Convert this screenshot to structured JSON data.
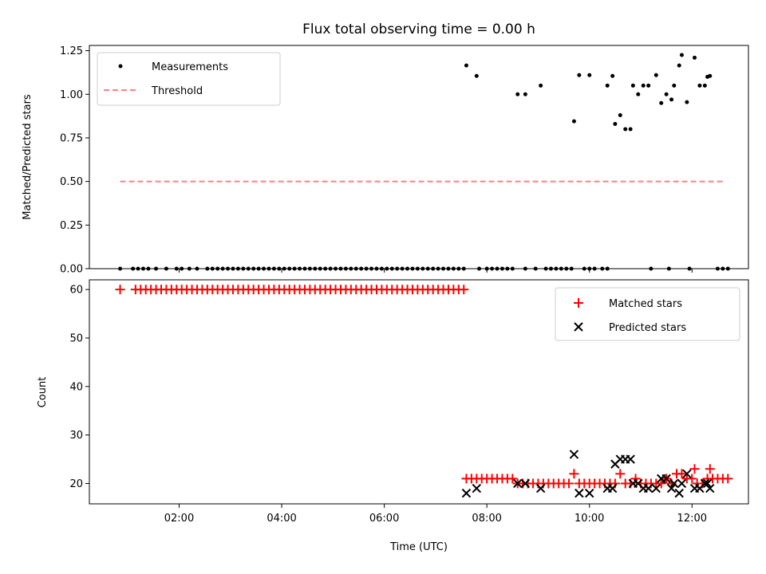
{
  "chart_data": [
    {
      "type": "scatter",
      "title": "Flux total observing time = 0.00 h",
      "xlabel": "",
      "ylabel": "Matched/Predicted stars",
      "xlim": [
        0.25,
        13.1
      ],
      "ylim": [
        0.0,
        1.28
      ],
      "yticks": [
        0.0,
        0.25,
        0.5,
        0.75,
        1.0,
        1.25
      ],
      "ytick_labels": [
        "0.00",
        "0.25",
        "0.50",
        "0.75",
        "1.00",
        "1.25"
      ],
      "threshold": {
        "name": "Threshold",
        "value": 0.5,
        "x_range": [
          0.85,
          12.65
        ],
        "color": "#ff8080"
      },
      "series": [
        {
          "name": "Measurements",
          "color": "#000000",
          "points": [
            [
              0.85,
              0
            ],
            [
              1.1,
              0
            ],
            [
              1.2,
              0
            ],
            [
              1.3,
              0
            ],
            [
              1.4,
              0
            ],
            [
              1.55,
              0
            ],
            [
              1.75,
              0
            ],
            [
              1.95,
              0
            ],
            [
              2.05,
              0
            ],
            [
              2.2,
              0
            ],
            [
              2.35,
              0
            ],
            [
              2.55,
              0
            ],
            [
              2.65,
              0
            ],
            [
              2.75,
              0
            ],
            [
              2.85,
              0
            ],
            [
              2.95,
              0
            ],
            [
              3.05,
              0
            ],
            [
              3.15,
              0
            ],
            [
              3.25,
              0
            ],
            [
              3.35,
              0
            ],
            [
              3.45,
              0
            ],
            [
              3.55,
              0
            ],
            [
              3.65,
              0
            ],
            [
              3.75,
              0
            ],
            [
              3.85,
              0
            ],
            [
              3.95,
              0
            ],
            [
              4.05,
              0
            ],
            [
              4.15,
              0
            ],
            [
              4.25,
              0
            ],
            [
              4.35,
              0
            ],
            [
              4.45,
              0
            ],
            [
              4.55,
              0
            ],
            [
              4.65,
              0
            ],
            [
              4.75,
              0
            ],
            [
              4.85,
              0
            ],
            [
              4.95,
              0
            ],
            [
              5.05,
              0
            ],
            [
              5.15,
              0
            ],
            [
              5.25,
              0
            ],
            [
              5.35,
              0
            ],
            [
              5.45,
              0
            ],
            [
              5.55,
              0
            ],
            [
              5.65,
              0
            ],
            [
              5.75,
              0
            ],
            [
              5.85,
              0
            ],
            [
              5.95,
              0
            ],
            [
              6.05,
              0
            ],
            [
              6.15,
              0
            ],
            [
              6.25,
              0
            ],
            [
              6.35,
              0
            ],
            [
              6.45,
              0
            ],
            [
              6.55,
              0
            ],
            [
              6.65,
              0
            ],
            [
              6.75,
              0
            ],
            [
              6.85,
              0
            ],
            [
              6.95,
              0
            ],
            [
              7.05,
              0
            ],
            [
              7.15,
              0
            ],
            [
              7.25,
              0
            ],
            [
              7.35,
              0
            ],
            [
              7.45,
              0
            ],
            [
              7.55,
              0
            ],
            [
              7.85,
              0
            ],
            [
              8.0,
              0
            ],
            [
              8.1,
              0
            ],
            [
              8.2,
              0
            ],
            [
              8.3,
              0
            ],
            [
              8.4,
              0
            ],
            [
              8.5,
              0
            ],
            [
              8.75,
              0
            ],
            [
              8.95,
              0
            ],
            [
              9.15,
              0
            ],
            [
              9.25,
              0
            ],
            [
              9.35,
              0
            ],
            [
              9.45,
              0
            ],
            [
              9.55,
              0
            ],
            [
              9.65,
              0
            ],
            [
              9.9,
              0
            ],
            [
              10.0,
              0
            ],
            [
              10.1,
              0
            ],
            [
              10.25,
              0
            ],
            [
              10.35,
              0
            ],
            [
              11.2,
              0
            ],
            [
              11.55,
              0
            ],
            [
              11.95,
              0
            ],
            [
              12.5,
              0
            ],
            [
              12.6,
              0
            ],
            [
              12.7,
              0
            ],
            [
              7.6,
              1.165
            ],
            [
              7.8,
              1.105
            ],
            [
              8.6,
              1.0
            ],
            [
              8.75,
              1.0
            ],
            [
              9.05,
              1.05
            ],
            [
              9.7,
              0.845
            ],
            [
              9.8,
              1.11
            ],
            [
              10.0,
              1.11
            ],
            [
              10.35,
              1.05
            ],
            [
              10.45,
              1.105
            ],
            [
              10.5,
              0.83
            ],
            [
              10.6,
              0.88
            ],
            [
              10.7,
              0.8
            ],
            [
              10.8,
              0.8
            ],
            [
              10.85,
              1.05
            ],
            [
              10.95,
              1.0
            ],
            [
              11.05,
              1.05
            ],
            [
              11.15,
              1.05
            ],
            [
              11.3,
              1.11
            ],
            [
              11.4,
              0.95
            ],
            [
              11.5,
              1.0
            ],
            [
              11.6,
              0.97
            ],
            [
              11.65,
              1.05
            ],
            [
              11.75,
              1.165
            ],
            [
              11.8,
              1.225
            ],
            [
              11.9,
              0.955
            ],
            [
              12.05,
              1.21
            ],
            [
              12.15,
              1.05
            ],
            [
              12.25,
              1.05
            ],
            [
              12.3,
              1.1
            ],
            [
              12.35,
              1.105
            ]
          ]
        }
      ],
      "legend": {
        "location": "upper left",
        "entries": [
          "Measurements",
          "Threshold"
        ]
      },
      "grid": false
    },
    {
      "type": "scatter",
      "title": "",
      "xlabel": "Time (UTC)",
      "ylabel": "Count",
      "xlim": [
        0.25,
        13.1
      ],
      "ylim": [
        15.8,
        62.0
      ],
      "yticks": [
        20,
        30,
        40,
        50,
        60
      ],
      "ytick_labels": [
        "20",
        "30",
        "40",
        "50",
        "60"
      ],
      "xticks": [
        2,
        4,
        6,
        8,
        10,
        12
      ],
      "xtick_labels": [
        "02:00",
        "04:00",
        "06:00",
        "08:00",
        "10:00",
        "12:00"
      ],
      "series": [
        {
          "name": "Matched stars",
          "marker": "+",
          "color": "#ff0000",
          "points": [
            [
              0.85,
              60
            ],
            [
              1.15,
              60
            ],
            [
              1.25,
              60
            ],
            [
              1.35,
              60
            ],
            [
              1.45,
              60
            ],
            [
              1.55,
              60
            ],
            [
              1.65,
              60
            ],
            [
              1.75,
              60
            ],
            [
              1.85,
              60
            ],
            [
              1.95,
              60
            ],
            [
              2.05,
              60
            ],
            [
              2.15,
              60
            ],
            [
              2.25,
              60
            ],
            [
              2.35,
              60
            ],
            [
              2.45,
              60
            ],
            [
              2.55,
              60
            ],
            [
              2.65,
              60
            ],
            [
              2.75,
              60
            ],
            [
              2.85,
              60
            ],
            [
              2.95,
              60
            ],
            [
              3.05,
              60
            ],
            [
              3.15,
              60
            ],
            [
              3.25,
              60
            ],
            [
              3.35,
              60
            ],
            [
              3.45,
              60
            ],
            [
              3.55,
              60
            ],
            [
              3.65,
              60
            ],
            [
              3.75,
              60
            ],
            [
              3.85,
              60
            ],
            [
              3.95,
              60
            ],
            [
              4.05,
              60
            ],
            [
              4.15,
              60
            ],
            [
              4.25,
              60
            ],
            [
              4.35,
              60
            ],
            [
              4.45,
              60
            ],
            [
              4.55,
              60
            ],
            [
              4.65,
              60
            ],
            [
              4.75,
              60
            ],
            [
              4.85,
              60
            ],
            [
              4.95,
              60
            ],
            [
              5.05,
              60
            ],
            [
              5.15,
              60
            ],
            [
              5.25,
              60
            ],
            [
              5.35,
              60
            ],
            [
              5.45,
              60
            ],
            [
              5.55,
              60
            ],
            [
              5.65,
              60
            ],
            [
              5.75,
              60
            ],
            [
              5.85,
              60
            ],
            [
              5.95,
              60
            ],
            [
              6.05,
              60
            ],
            [
              6.15,
              60
            ],
            [
              6.25,
              60
            ],
            [
              6.35,
              60
            ],
            [
              6.45,
              60
            ],
            [
              6.55,
              60
            ],
            [
              6.65,
              60
            ],
            [
              6.75,
              60
            ],
            [
              6.85,
              60
            ],
            [
              6.95,
              60
            ],
            [
              7.05,
              60
            ],
            [
              7.15,
              60
            ],
            [
              7.25,
              60
            ],
            [
              7.35,
              60
            ],
            [
              7.45,
              60
            ],
            [
              7.55,
              60
            ],
            [
              7.6,
              21
            ],
            [
              7.7,
              21
            ],
            [
              7.8,
              21
            ],
            [
              7.9,
              21
            ],
            [
              8.0,
              21
            ],
            [
              8.1,
              21
            ],
            [
              8.2,
              21
            ],
            [
              8.3,
              21
            ],
            [
              8.4,
              21
            ],
            [
              8.5,
              21
            ],
            [
              8.6,
              20
            ],
            [
              8.7,
              20
            ],
            [
              8.8,
              20
            ],
            [
              8.9,
              20
            ],
            [
              9.0,
              20
            ],
            [
              9.1,
              20
            ],
            [
              9.2,
              20
            ],
            [
              9.3,
              20
            ],
            [
              9.4,
              20
            ],
            [
              9.5,
              20
            ],
            [
              9.6,
              20
            ],
            [
              9.7,
              22
            ],
            [
              9.8,
              20
            ],
            [
              9.9,
              20
            ],
            [
              10.0,
              20
            ],
            [
              10.1,
              20
            ],
            [
              10.2,
              20
            ],
            [
              10.3,
              20
            ],
            [
              10.4,
              20
            ],
            [
              10.5,
              20
            ],
            [
              10.6,
              22
            ],
            [
              10.7,
              20
            ],
            [
              10.8,
              20
            ],
            [
              10.9,
              21
            ],
            [
              11.0,
              20
            ],
            [
              11.1,
              20
            ],
            [
              11.2,
              20
            ],
            [
              11.3,
              20
            ],
            [
              11.4,
              20
            ],
            [
              11.5,
              21
            ],
            [
              11.6,
              20
            ],
            [
              11.7,
              22
            ],
            [
              11.8,
              22
            ],
            [
              11.9,
              21
            ],
            [
              12.0,
              21
            ],
            [
              12.05,
              23
            ],
            [
              12.1,
              20
            ],
            [
              12.2,
              20
            ],
            [
              12.3,
              21
            ],
            [
              12.35,
              23
            ],
            [
              12.4,
              21
            ],
            [
              12.5,
              21
            ],
            [
              12.6,
              21
            ],
            [
              12.7,
              21
            ]
          ]
        },
        {
          "name": "Predicted stars",
          "marker": "x",
          "color": "#000000",
          "points": [
            [
              7.6,
              18
            ],
            [
              7.8,
              19
            ],
            [
              8.6,
              20
            ],
            [
              8.75,
              20
            ],
            [
              9.05,
              19
            ],
            [
              9.7,
              26
            ],
            [
              9.8,
              18
            ],
            [
              10.0,
              18
            ],
            [
              10.35,
              19
            ],
            [
              10.45,
              19
            ],
            [
              10.5,
              24
            ],
            [
              10.6,
              25
            ],
            [
              10.7,
              25
            ],
            [
              10.8,
              25
            ],
            [
              10.85,
              20
            ],
            [
              10.95,
              20
            ],
            [
              11.05,
              19
            ],
            [
              11.15,
              19
            ],
            [
              11.3,
              19
            ],
            [
              11.4,
              21
            ],
            [
              11.5,
              21
            ],
            [
              11.6,
              19
            ],
            [
              11.65,
              20
            ],
            [
              11.75,
              18
            ],
            [
              11.8,
              20
            ],
            [
              11.9,
              22
            ],
            [
              12.05,
              19
            ],
            [
              12.15,
              19
            ],
            [
              12.25,
              20
            ],
            [
              12.3,
              20
            ],
            [
              12.35,
              19
            ]
          ]
        }
      ],
      "legend": {
        "location": "upper right",
        "entries": [
          "Matched stars",
          "Predicted stars"
        ]
      },
      "grid": false
    }
  ]
}
